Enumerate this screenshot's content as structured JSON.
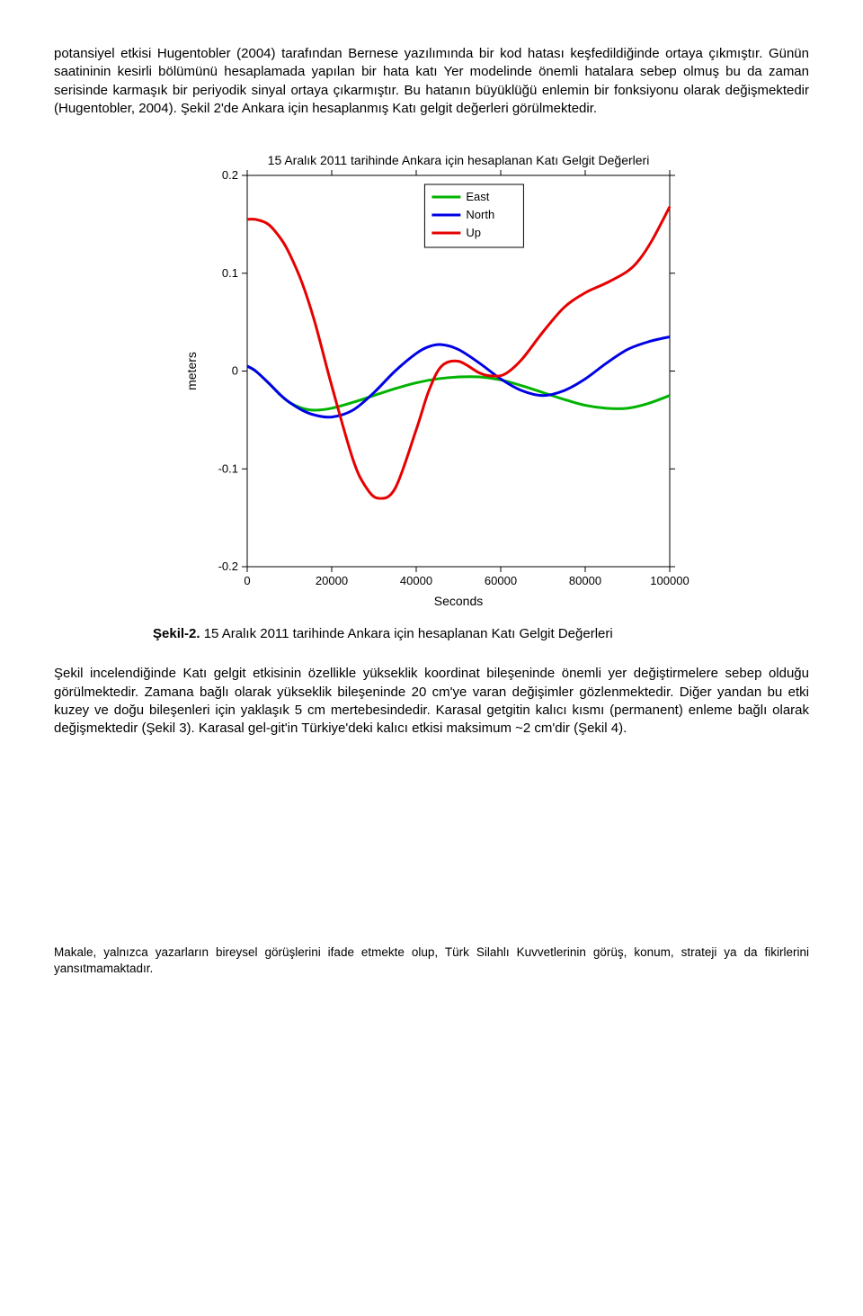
{
  "para1": "potansiyel etkisi Hugentobler (2004) tarafından Bernese yazılımında bir kod hatası keşfedildiğinde ortaya çıkmıştır. Günün saatininin kesirli bölümünü hesaplamada yapılan bir hata katı Yer modelinde önemli hatalara sebep olmuş bu da zaman serisinde karmaşık bir periyodik sinyal ortaya çıkarmıştır. Bu hatanın büyüklüğü enlemin bir fonksiyonu olarak değişmektedir (Hugentobler, 2004). Şekil 2'de Ankara için hesaplanmış Katı gelgit değerleri görülmektedir.",
  "caption_label": "Şekil-2.",
  "caption_text": " 15 Aralık 2011 tarihinde Ankara için hesaplanan Katı Gelgit Değerleri",
  "para2": "Şekil incelendiğinde Katı gelgit etkisinin özellikle yükseklik koordinat bileşeninde önemli yer değiştirmelere sebep olduğu görülmektedir. Zamana bağlı olarak yükseklik bileşeninde 20 cm'ye varan değişimler gözlenmektedir. Diğer yandan bu etki kuzey ve doğu bileşenleri için yaklaşık 5 cm mertebesindedir. Karasal getgitin kalıcı kısmı (permanent) enleme bağlı olarak değişmektedir (Şekil 3). Karasal gel-git'in Türkiye'deki kalıcı etkisi maksimum ~2 cm'dir (Şekil 4).",
  "footnote": "Makale, yalnızca yazarların bireysel görüşlerini ifade etmekte olup, Türk Silahlı Kuvvetlerinin görüş, konum, strateji ya da fikirlerini yansıtmamaktadır.",
  "chart": {
    "type": "line",
    "title": "15 Aralık 2011 tarihinde Ankara için hesaplanan Katı Gelgit Değerleri",
    "title_fontsize": 14,
    "xlabel": "Seconds",
    "ylabel": "meters",
    "label_fontsize": 14,
    "xlim": [
      0,
      100000
    ],
    "ylim": [
      -0.2,
      0.2
    ],
    "xtick_step": 20000,
    "ytick_step": 0.1,
    "xticks": [
      0,
      20000,
      40000,
      60000,
      80000,
      100000
    ],
    "yticks": [
      -0.2,
      -0.1,
      0,
      0.1,
      0.2
    ],
    "background_color": "#ffffff",
    "axis_color": "#000000",
    "line_width": 3,
    "legend_position": "top-center-inset",
    "series": [
      {
        "name": "East",
        "color": "#00b300",
        "x": [
          0,
          2000,
          5000,
          8000,
          10000,
          13000,
          16000,
          20000,
          25000,
          30000,
          35000,
          40000,
          45000,
          50000,
          55000,
          60000,
          65000,
          70000,
          75000,
          80000,
          85000,
          90000,
          95000,
          100000
        ],
        "y": [
          0.005,
          0.0,
          -0.012,
          -0.025,
          -0.032,
          -0.038,
          -0.04,
          -0.038,
          -0.032,
          -0.025,
          -0.018,
          -0.012,
          -0.008,
          -0.006,
          -0.006,
          -0.009,
          -0.015,
          -0.022,
          -0.029,
          -0.035,
          -0.038,
          -0.038,
          -0.033,
          -0.025
        ]
      },
      {
        "name": "North",
        "color": "#0000e6",
        "x": [
          0,
          2000,
          5000,
          8000,
          10000,
          13000,
          16000,
          20000,
          25000,
          30000,
          35000,
          40000,
          43000,
          46000,
          50000,
          55000,
          60000,
          65000,
          70000,
          75000,
          80000,
          85000,
          90000,
          95000,
          100000
        ],
        "y": [
          0.005,
          0.0,
          -0.012,
          -0.025,
          -0.032,
          -0.04,
          -0.045,
          -0.047,
          -0.04,
          -0.022,
          0.0,
          0.018,
          0.025,
          0.027,
          0.022,
          0.008,
          -0.008,
          -0.02,
          -0.025,
          -0.02,
          -0.008,
          0.008,
          0.022,
          0.03,
          0.035
        ]
      },
      {
        "name": "Up",
        "color": "#e60000",
        "x": [
          0,
          2000,
          5000,
          8000,
          10000,
          13000,
          16000,
          20000,
          25000,
          28000,
          31000,
          35000,
          40000,
          43000,
          46000,
          50000,
          55000,
          58000,
          61000,
          65000,
          70000,
          75000,
          80000,
          85000,
          90000,
          93000,
          96000,
          100000
        ],
        "y": [
          0.155,
          0.155,
          0.15,
          0.135,
          0.12,
          0.09,
          0.05,
          -0.015,
          -0.09,
          -0.118,
          -0.13,
          -0.12,
          -0.06,
          -0.02,
          0.005,
          0.01,
          -0.002,
          -0.005,
          -0.003,
          0.012,
          0.04,
          0.065,
          0.08,
          0.09,
          0.102,
          0.115,
          0.135,
          0.168
        ]
      }
    ]
  }
}
